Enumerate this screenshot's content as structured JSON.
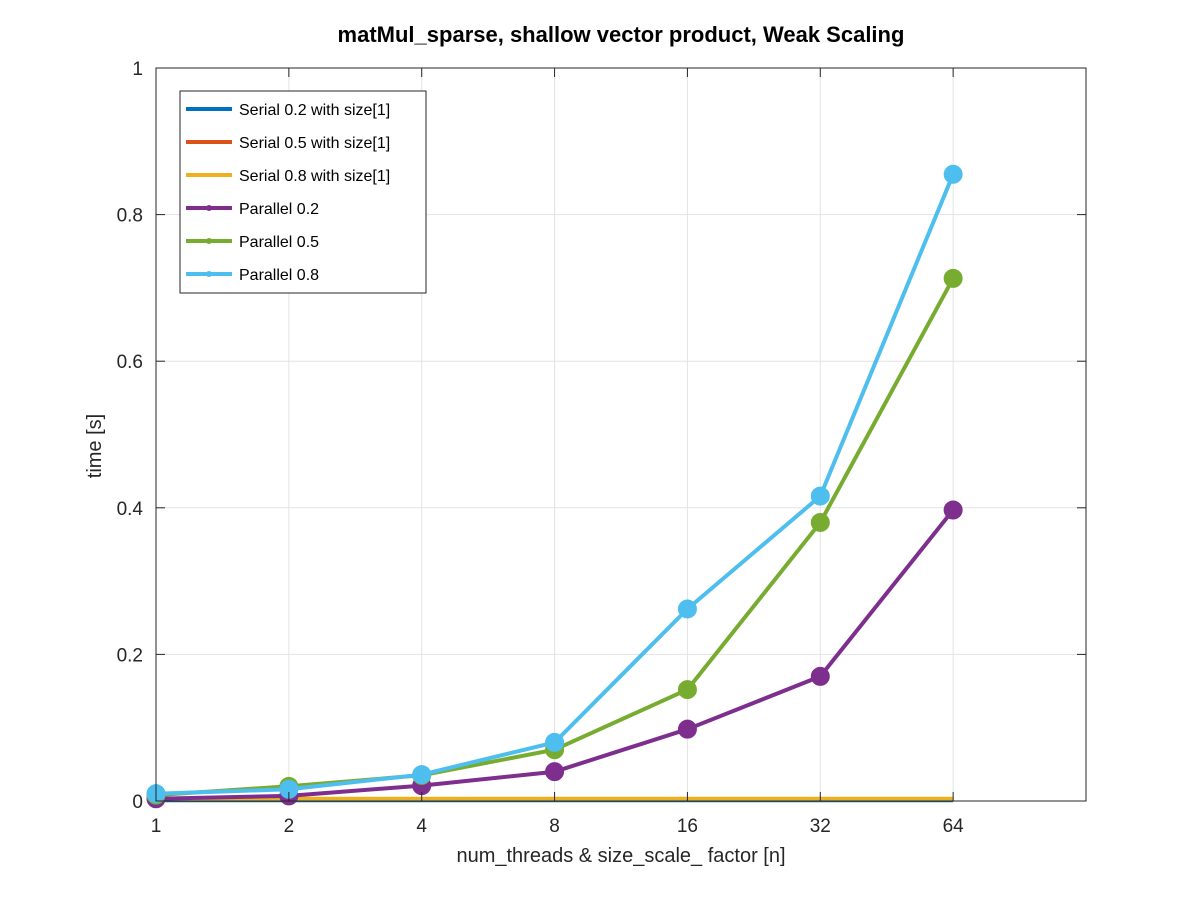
{
  "chart_data": {
    "type": "line",
    "title": "matMul_sparse, shallow vector product, Weak Scaling",
    "xlabel": "num_threads & size_scale_ factor [n]",
    "ylabel": "time [s]",
    "x_scale": "log2",
    "x": [
      1,
      2,
      4,
      8,
      16,
      32,
      64
    ],
    "x_tick_labels": [
      "1",
      "2",
      "4",
      "8",
      "16",
      "32",
      "64"
    ],
    "xlim": [
      1,
      128
    ],
    "ylim": [
      0,
      1
    ],
    "y_ticks": [
      0,
      0.2,
      0.4,
      0.6,
      0.8,
      1
    ],
    "y_tick_labels": [
      "0",
      "0.2",
      "0.4",
      "0.6",
      "0.8",
      "1"
    ],
    "grid": true,
    "legend_position": "top-left",
    "series": [
      {
        "name": "Serial 0.2 with size[1]",
        "color": "#0072BD",
        "marker": false,
        "values": [
          0.001,
          0.001,
          0.001,
          0.001,
          0.001,
          0.001,
          0.001
        ]
      },
      {
        "name": "Serial 0.5 with size[1]",
        "color": "#D95319",
        "marker": false,
        "values": [
          0.002,
          0.002,
          0.002,
          0.002,
          0.002,
          0.002,
          0.002
        ]
      },
      {
        "name": "Serial 0.8 with size[1]",
        "color": "#EDB120",
        "marker": false,
        "values": [
          0.003,
          0.003,
          0.003,
          0.003,
          0.003,
          0.003,
          0.003
        ]
      },
      {
        "name": "Parallel 0.2",
        "color": "#7E2F8E",
        "marker": true,
        "values": [
          0.003,
          0.007,
          0.021,
          0.04,
          0.098,
          0.17,
          0.397
        ]
      },
      {
        "name": "Parallel 0.5",
        "color": "#77AC30",
        "marker": true,
        "values": [
          0.008,
          0.02,
          0.035,
          0.07,
          0.152,
          0.38,
          0.713
        ]
      },
      {
        "name": "Parallel 0.8",
        "color": "#4DBEEE",
        "marker": true,
        "values": [
          0.01,
          0.016,
          0.036,
          0.08,
          0.262,
          0.416,
          0.855
        ]
      }
    ]
  }
}
